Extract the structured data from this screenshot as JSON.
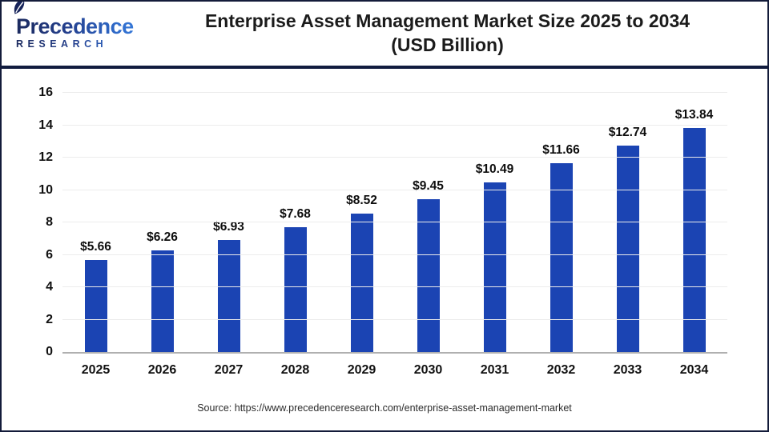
{
  "logo": {
    "name": "Precedence",
    "subtitle": "RESEARCH",
    "leaf_color": "#16235a"
  },
  "header": {
    "title_line1": "Enterprise Asset Management Market Size 2025 to 2034",
    "title_line2": "(USD Billion)"
  },
  "chart_data": {
    "type": "bar",
    "title": "Enterprise Asset Management Market Size 2025 to 2034 (USD Billion)",
    "categories": [
      "2025",
      "2026",
      "2027",
      "2028",
      "2029",
      "2030",
      "2031",
      "2032",
      "2033",
      "2034"
    ],
    "values": [
      5.66,
      6.26,
      6.93,
      7.68,
      8.52,
      9.45,
      10.49,
      11.66,
      12.74,
      13.84
    ],
    "value_labels": [
      "$5.66",
      "$6.26",
      "$6.93",
      "$7.68",
      "$8.52",
      "$9.45",
      "$10.49",
      "$11.66",
      "$12.74",
      "$13.84"
    ],
    "xlabel": "",
    "ylabel": "",
    "ylim": [
      0,
      16
    ],
    "yticks": [
      0,
      2,
      4,
      6,
      8,
      10,
      12,
      14,
      16
    ],
    "grid": true,
    "legend": false,
    "bar_color": "#1b44b3",
    "gridline_color": "#ebebeb",
    "axis_line_color": "#b0b0b0"
  },
  "footer": {
    "source": "Source: https://www.precedenceresearch.com/enterprise-asset-management-market"
  }
}
